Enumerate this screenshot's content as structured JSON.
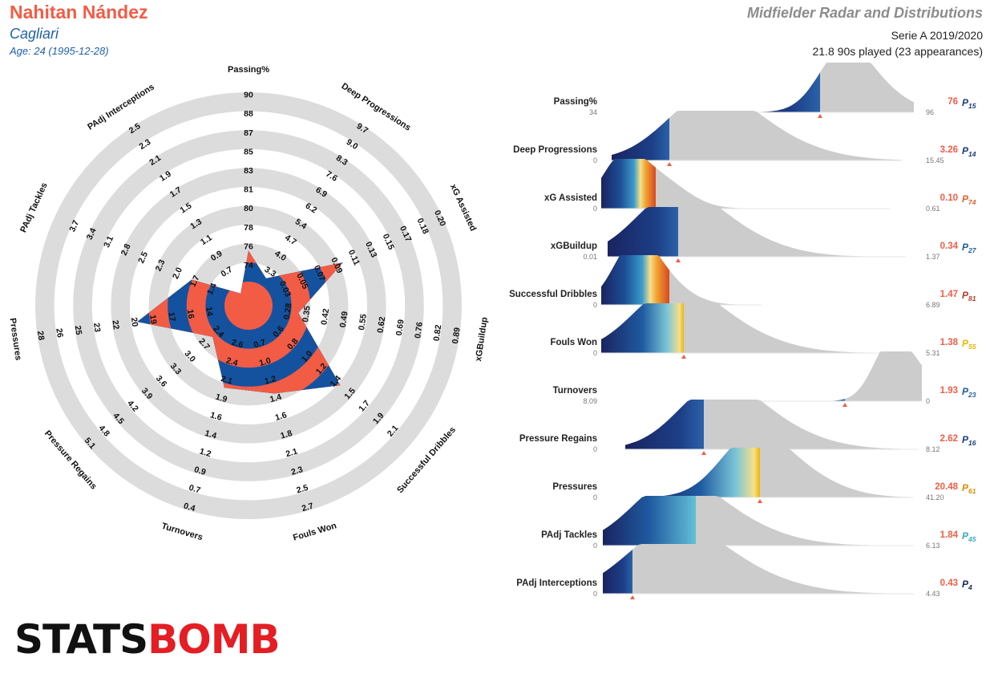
{
  "header": {
    "player_name": "Nahitan Nández",
    "team": "Cagliari",
    "age_line": "Age: 24 (1995-12-28)",
    "report_title": "Midfielder Radar and Distributions",
    "league_season": "Serie A 2019/2020",
    "minutes_line": "21.8 90s played (23 appearances)"
  },
  "brand": {
    "part1": "STATS",
    "part2": "BOMB"
  },
  "colors": {
    "accent": "#f25c45",
    "team_blue": "#1452a0",
    "ring_gray": "#dcdcdc",
    "distribution_gray": "#cccccc",
    "title_gray": "#8c8c8c"
  },
  "chart_data": [
    {
      "type": "radar",
      "axes": [
        {
          "label": "Passing%",
          "ticks": [
            "74",
            "76",
            "78",
            "80",
            "81",
            "83",
            "85",
            "87",
            "88",
            "90"
          ],
          "value": 76
        },
        {
          "label": "Deep Progressions",
          "ticks": [
            "3.3",
            "4.0",
            "4.7",
            "5.4",
            "6.2",
            "6.9",
            "7.6",
            "8.3",
            "9.0",
            "9.7"
          ],
          "value": 3.26
        },
        {
          "label": "xG Assisted",
          "ticks": [
            "0.03",
            "0.05",
            "0.07",
            "0.09",
            "0.11",
            "0.13",
            "0.15",
            "0.17",
            "0.18",
            "0.20"
          ],
          "value": 0.1
        },
        {
          "label": "xGBuildup",
          "ticks": [
            "0.28",
            "0.35",
            "0.42",
            "0.49",
            "0.55",
            "0.62",
            "0.69",
            "0.76",
            "0.82",
            "0.89"
          ],
          "value": 0.34
        },
        {
          "label": "Successful Dribbles",
          "ticks": [
            "0.6",
            "0.8",
            "1.0",
            "1.2",
            "1.4",
            "1.5",
            "1.7",
            "1.9",
            "2.1",
            ""
          ],
          "value": 1.47
        },
        {
          "label": "Fouls Won",
          "ticks": [
            "0.7",
            "1.0",
            "1.2",
            "1.4",
            "1.6",
            "1.8",
            "2.1",
            "2.3",
            "2.5",
            "2.7"
          ],
          "value": 1.38
        },
        {
          "label": "Turnovers",
          "ticks": [
            "2.6",
            "2.4",
            "2.1",
            "1.9",
            "1.6",
            "1.4",
            "1.2",
            "0.9",
            "0.7",
            "0.4"
          ],
          "value": 1.93
        },
        {
          "label": "Pressure Regains",
          "ticks": [
            "2.4",
            "2.7",
            "3.0",
            "3.3",
            "3.6",
            "3.9",
            "4.2",
            "4.5",
            "4.8",
            "5.1"
          ],
          "value": 2.62
        },
        {
          "label": "Pressures",
          "ticks": [
            "14",
            "16",
            "17",
            "19",
            "20",
            "22",
            "23",
            "25",
            "26",
            "28"
          ],
          "value": 20.48
        },
        {
          "label": "PAdj Tackles",
          "ticks": [
            "1.4",
            "1.7",
            "2.0",
            "2.3",
            "2.5",
            "2.8",
            "3.1",
            "3.4",
            "3.7",
            ""
          ],
          "value": 1.84
        },
        {
          "label": "PAdj Interceptions",
          "ticks": [
            "0.7",
            "0.9",
            "1.1",
            "1.3",
            "1.5",
            "1.7",
            "1.9",
            "2.1",
            "2.3",
            "2.5"
          ],
          "value": 0.43
        }
      ]
    },
    {
      "type": "area",
      "title": "Distributions",
      "rows": [
        {
          "label": "Passing%",
          "min": "34",
          "max": "96",
          "value": "76",
          "pct": "15",
          "color": "#1a3c80"
        },
        {
          "label": "Deep Progressions",
          "min": "0",
          "max": "15.45",
          "value": "3.26",
          "pct": "14",
          "color": "#1a3c80"
        },
        {
          "label": "xG Assisted",
          "min": "0",
          "max": "0.61",
          "value": "0.10",
          "pct": "74",
          "color": "#e0622a"
        },
        {
          "label": "xGBuildup",
          "min": "0.01",
          "max": "1.37",
          "value": "0.34",
          "pct": "27",
          "color": "#1f5fa0"
        },
        {
          "label": "Successful Dribbles",
          "min": "0",
          "max": "6.89",
          "value": "1.47",
          "pct": "81",
          "color": "#c0392b"
        },
        {
          "label": "Fouls Won",
          "min": "0",
          "max": "5.31",
          "value": "1.38",
          "pct": "55",
          "color": "#f0b400"
        },
        {
          "label": "Turnovers",
          "min": "8.09",
          "max": "0",
          "value": "1.93",
          "pct": "23",
          "color": "#1f5fa0"
        },
        {
          "label": "Pressure Regains",
          "min": "0",
          "max": "8.12",
          "value": "2.62",
          "pct": "16",
          "color": "#1a3c80"
        },
        {
          "label": "Pressures",
          "min": "0",
          "max": "41.20",
          "value": "20.48",
          "pct": "61",
          "color": "#e08a00"
        },
        {
          "label": "PAdj Tackles",
          "min": "0",
          "max": "6.13",
          "value": "1.84",
          "pct": "45",
          "color": "#3aa7c8"
        },
        {
          "label": "PAdj Interceptions",
          "min": "0",
          "max": "4.43",
          "value": "0.43",
          "pct": "4",
          "color": "#1a2a60"
        }
      ]
    }
  ]
}
